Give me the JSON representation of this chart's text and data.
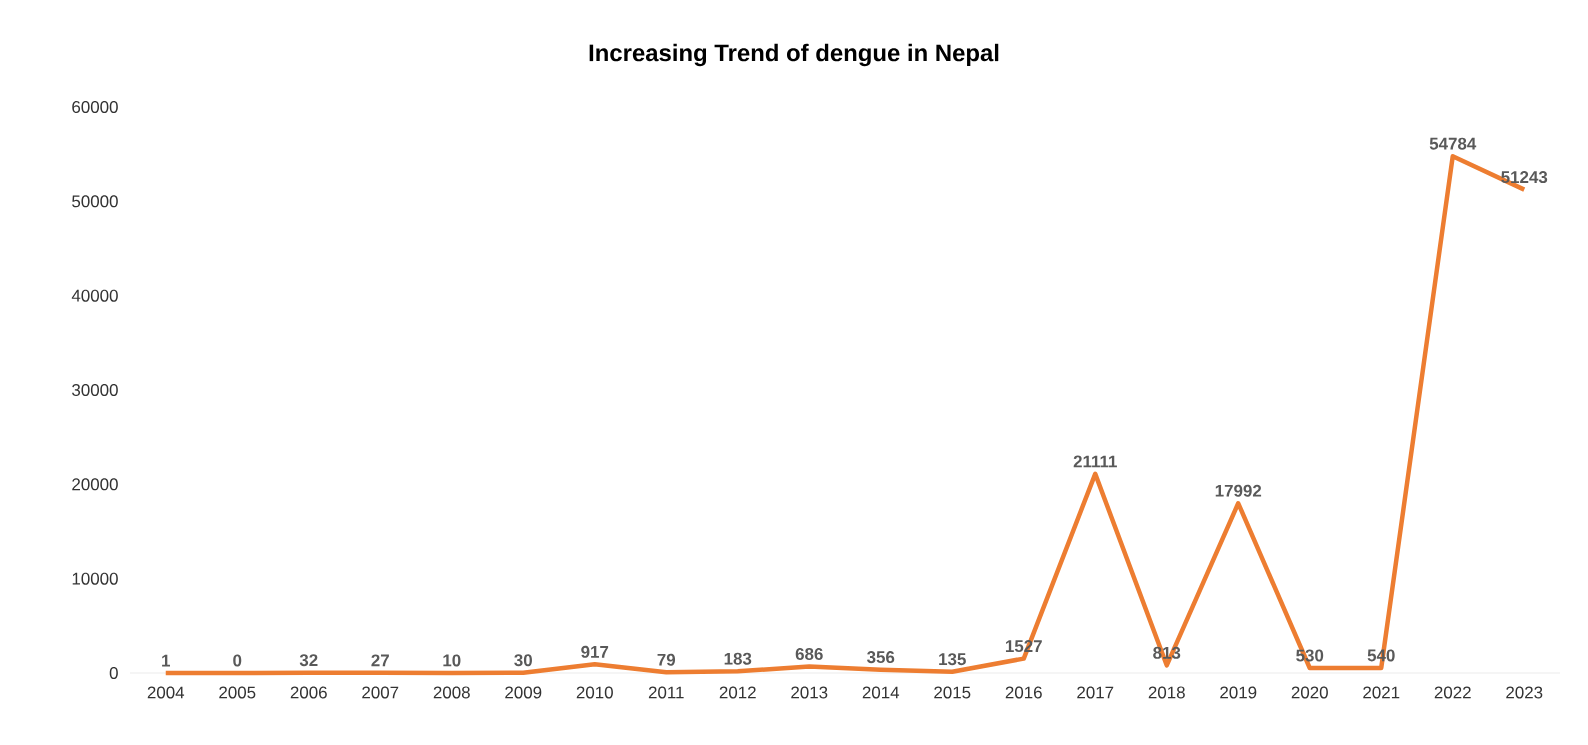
{
  "chart_data": {
    "type": "line",
    "title": "Increasing Trend of dengue in Nepal",
    "categories": [
      "2004",
      "2005",
      "2006",
      "2007",
      "2008",
      "2009",
      "2010",
      "2011",
      "2012",
      "2013",
      "2014",
      "2015",
      "2016",
      "2017",
      "2018",
      "2019",
      "2020",
      "2021",
      "2022",
      "2023"
    ],
    "values": [
      1,
      0,
      32,
      27,
      10,
      30,
      917,
      79,
      183,
      686,
      356,
      135,
      1527,
      21111,
      813,
      17992,
      530,
      540,
      54784,
      51243
    ],
    "color": "#ed7d31",
    "ylim": [
      0,
      60000
    ],
    "yticks": [
      0,
      10000,
      20000,
      30000,
      40000,
      50000,
      60000
    ],
    "marker": "none",
    "line_style": "solid",
    "data_labels": true
  }
}
